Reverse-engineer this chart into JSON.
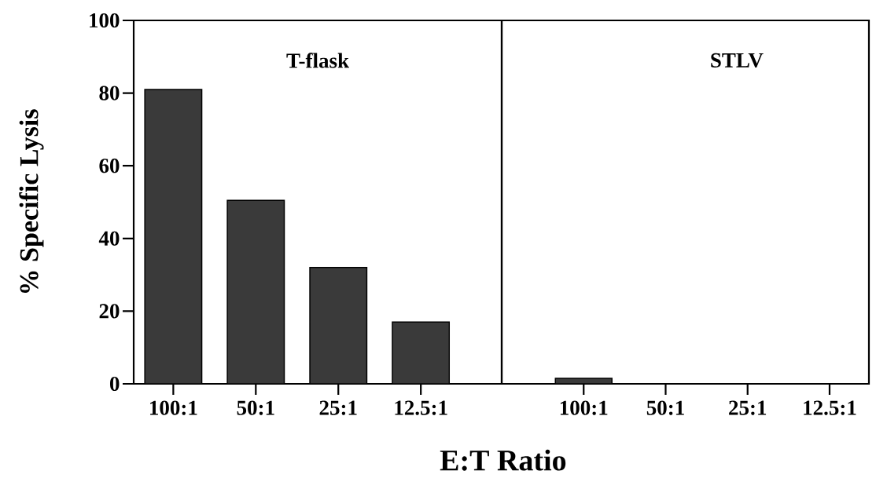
{
  "chart_data": [
    {
      "type": "bar",
      "title": "T-flask",
      "xlabel": "E:T Ratio",
      "ylabel": "% Specific Lysis",
      "categories": [
        "100:1",
        "50:1",
        "25:1",
        "12.5:1"
      ],
      "values": [
        81,
        50.5,
        32,
        17
      ],
      "color": "#3a3a3a",
      "ylim": [
        0,
        100
      ],
      "yticks": [
        0,
        20,
        40,
        60,
        80,
        100
      ]
    },
    {
      "type": "bar",
      "title": "STLV",
      "categories": [
        "100:1",
        "50:1",
        "25:1",
        "12.5:1"
      ],
      "values": [
        1.5,
        0,
        0,
        0
      ],
      "color": "#3a3a3a",
      "ylim": [
        0,
        100
      ],
      "yticks": [
        0,
        20,
        40,
        60,
        80,
        100
      ],
      "tick_labels": "x"
    }
  ]
}
